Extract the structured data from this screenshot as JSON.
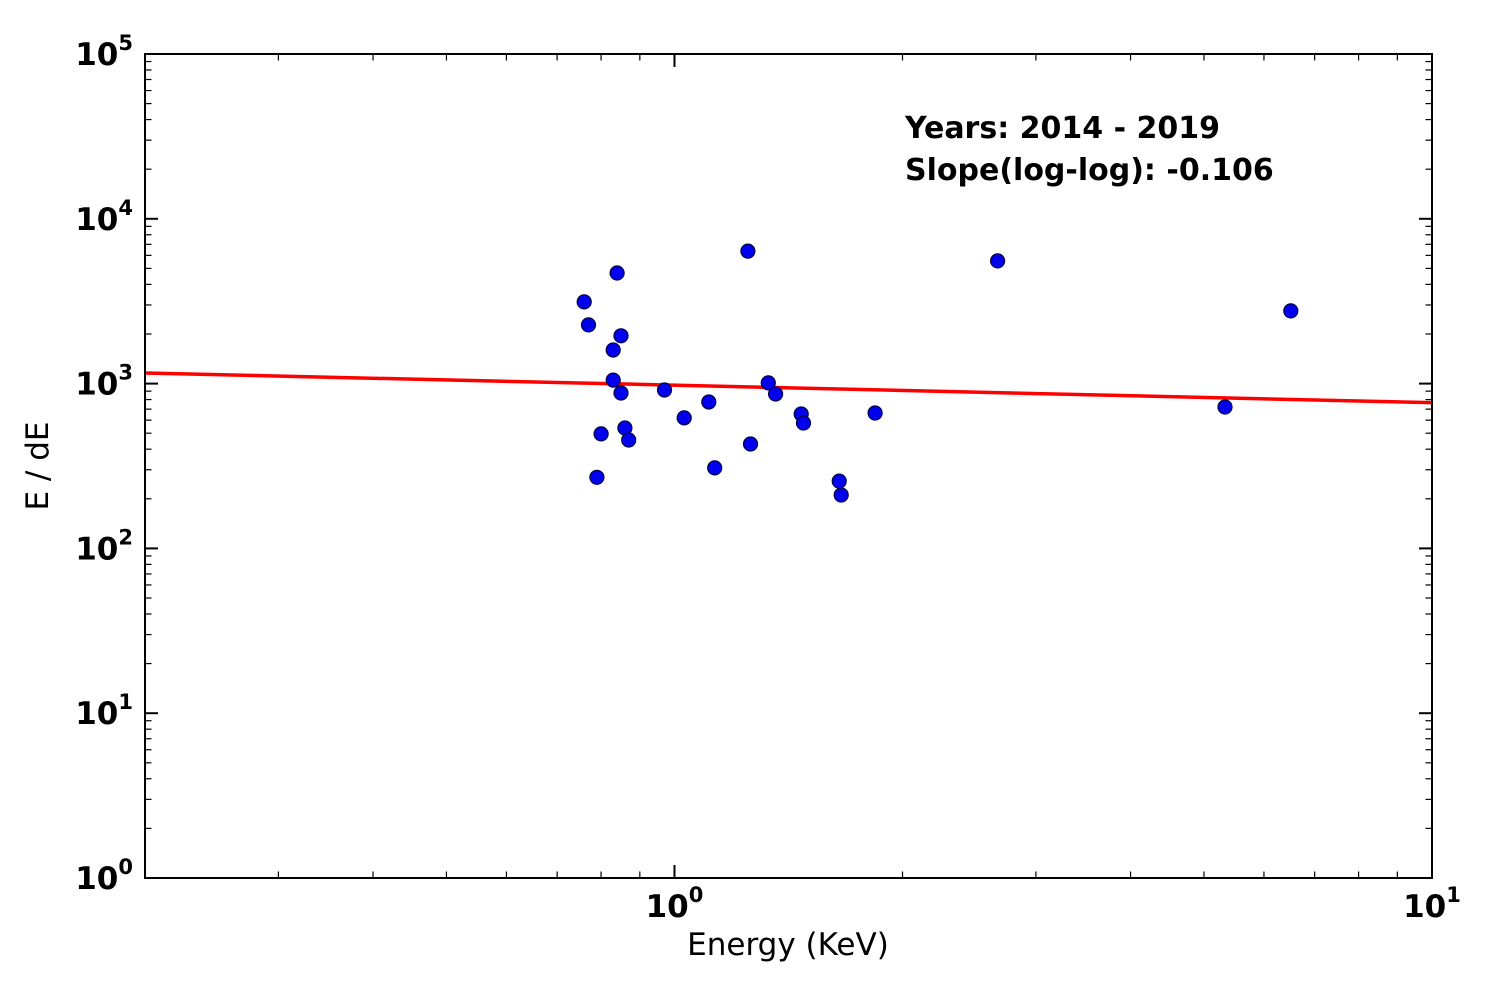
{
  "chart_data": {
    "type": "scatter",
    "title": "",
    "xlabel": "Energy (KeV)",
    "ylabel": "E / dE",
    "xscale": "log",
    "yscale": "log",
    "xlim": [
      0.2,
      10
    ],
    "ylim": [
      1,
      100000
    ],
    "grid": false,
    "legend": "none",
    "x_major_ticks": [
      {
        "value": 1,
        "exp": 0
      },
      {
        "value": 10,
        "exp": 1
      }
    ],
    "y_major_ticks": [
      {
        "value": 1,
        "exp": 0
      },
      {
        "value": 10,
        "exp": 1
      },
      {
        "value": 100,
        "exp": 2
      },
      {
        "value": 1000,
        "exp": 3
      },
      {
        "value": 10000,
        "exp": 4
      },
      {
        "value": 100000,
        "exp": 5
      }
    ],
    "annotation": {
      "line1": "Years: 2014 - 2019",
      "line2": "Slope(log-log): -0.106"
    },
    "series": [
      {
        "name": "spectra-points",
        "type": "scatter",
        "marker_color": "#0000ee",
        "marker_edge_color": "#000044",
        "points": [
          [
            1.25,
            6370
          ],
          [
            0.84,
            4690
          ],
          [
            0.76,
            3130
          ],
          [
            0.77,
            2270
          ],
          [
            0.85,
            1950
          ],
          [
            0.83,
            1600
          ],
          [
            0.83,
            1050
          ],
          [
            0.85,
            877
          ],
          [
            0.97,
            915
          ],
          [
            1.33,
            1010
          ],
          [
            1.36,
            865
          ],
          [
            1.11,
            773
          ],
          [
            1.03,
            619
          ],
          [
            1.47,
            654
          ],
          [
            1.48,
            577
          ],
          [
            1.84,
            663
          ],
          [
            0.86,
            538
          ],
          [
            0.8,
            495
          ],
          [
            0.87,
            455
          ],
          [
            1.26,
            430
          ],
          [
            1.13,
            308
          ],
          [
            0.79,
            270
          ],
          [
            1.65,
            256
          ],
          [
            1.66,
            211
          ],
          [
            2.67,
            5550
          ],
          [
            6.51,
            2760
          ],
          [
            5.33,
            721
          ]
        ]
      },
      {
        "name": "power-law-fit",
        "type": "line",
        "color": "#ff0000",
        "slope_loglog": -0.106,
        "points": [
          [
            0.2,
            1160
          ],
          [
            10,
            766
          ]
        ]
      }
    ]
  }
}
